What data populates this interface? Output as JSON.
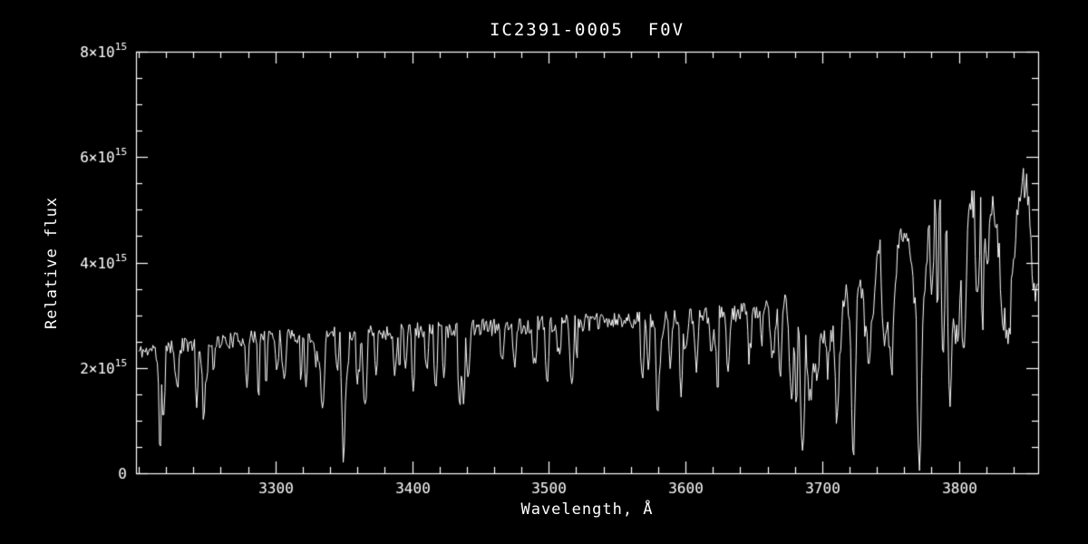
{
  "chart_data": {
    "type": "line",
    "title": "IC2391-0005  F0V",
    "xlabel": "Wavelength, Å",
    "ylabel": "Relative flux",
    "xlim": [
      3198,
      3858
    ],
    "ylim_e15": [
      0,
      8
    ],
    "x_major_ticks": [
      3300,
      3400,
      3500,
      3600,
      3700,
      3800
    ],
    "x_minor_step": 20,
    "y_major_ticks": [
      {
        "value_e15": 0,
        "mantissa": "0",
        "exponent": ""
      },
      {
        "value_e15": 2,
        "mantissa": "2×10",
        "exponent": "15"
      },
      {
        "value_e15": 4,
        "mantissa": "4×10",
        "exponent": "15"
      },
      {
        "value_e15": 6,
        "mantissa": "6×10",
        "exponent": "15"
      },
      {
        "value_e15": 8,
        "mantissa": "8×10",
        "exponent": "15"
      }
    ],
    "y_minor_step_e15": 0.5,
    "grid": false,
    "legend": "none",
    "colors": {
      "background": "#000000",
      "foreground": "#ffffff"
    },
    "spectrum": {
      "units_note": "flux values in 1e15 relative flux units",
      "step_angstrom": 0.8,
      "seed": 11,
      "jitter_fraction": 0.06,
      "random_dips": {
        "probability": 0.09,
        "depth_min": 0.2,
        "depth_max": 0.55,
        "len_min": 2,
        "len_max": 5
      },
      "continuum": [
        [
          3198,
          2.3
        ],
        [
          3240,
          2.45
        ],
        [
          3280,
          2.55
        ],
        [
          3320,
          2.6
        ],
        [
          3360,
          2.65
        ],
        [
          3400,
          2.7
        ],
        [
          3440,
          2.75
        ],
        [
          3480,
          2.8
        ],
        [
          3520,
          2.85
        ],
        [
          3560,
          2.9
        ],
        [
          3600,
          2.95
        ],
        [
          3640,
          3.05
        ],
        [
          3670,
          3.2
        ],
        [
          3690,
          3.45
        ],
        [
          3710,
          3.8
        ],
        [
          3730,
          4.15
        ],
        [
          3750,
          4.45
        ],
        [
          3770,
          4.8
        ],
        [
          3790,
          5.05
        ],
        [
          3810,
          5.15
        ],
        [
          3830,
          5.35
        ],
        [
          3858,
          5.7
        ]
      ],
      "absorption_lines": [
        {
          "x": 3216,
          "depth": 0.9,
          "width": 1.5
        },
        {
          "x": 3228,
          "depth": 0.8,
          "width": 1.2
        },
        {
          "x": 3247,
          "depth": 0.7,
          "width": 1.0
        },
        {
          "x": 3350,
          "depth": 1.6,
          "width": 1.2
        },
        {
          "x": 3361,
          "depth": 0.8,
          "width": 1.0
        },
        {
          "x": 3441,
          "depth": 0.9,
          "width": 1.0
        },
        {
          "x": 3475,
          "depth": 0.8,
          "width": 1.0
        },
        {
          "x": 3581,
          "depth": 1.1,
          "width": 1.2
        },
        {
          "x": 3589,
          "depth": 0.9,
          "width": 1.0
        },
        {
          "x": 3608,
          "depth": 1.0,
          "width": 1.0
        },
        {
          "x": 3631,
          "depth": 1.0,
          "width": 1.2
        },
        {
          "x": 3647,
          "depth": 0.9,
          "width": 1.0
        },
        {
          "x": 3664,
          "depth": 1.0,
          "width": 1.5
        },
        {
          "x": 3679,
          "depth": 1.2,
          "width": 2.0
        },
        {
          "x": 3686,
          "depth": 1.3,
          "width": 2.0
        },
        {
          "x": 3692,
          "depth": 1.4,
          "width": 2.0
        },
        {
          "x": 3697,
          "depth": 1.5,
          "width": 2.0
        },
        {
          "x": 3704,
          "depth": 1.6,
          "width": 2.5
        },
        {
          "x": 3712,
          "depth": 1.7,
          "width": 2.5
        },
        {
          "x": 3722,
          "depth": 1.8,
          "width": 2.5
        },
        {
          "x": 3734,
          "depth": 2.1,
          "width": 3.0
        },
        {
          "x": 3750,
          "depth": 2.3,
          "width": 3.0
        },
        {
          "x": 3771,
          "depth": 2.4,
          "width": 3.5
        },
        {
          "x": 3798,
          "depth": 2.6,
          "width": 4.0
        },
        {
          "x": 3820,
          "depth": 1.2,
          "width": 2.0
        },
        {
          "x": 3835,
          "depth": 2.9,
          "width": 4.5
        },
        {
          "x": 3856,
          "depth": 2.3,
          "width": 3.0
        }
      ]
    }
  }
}
